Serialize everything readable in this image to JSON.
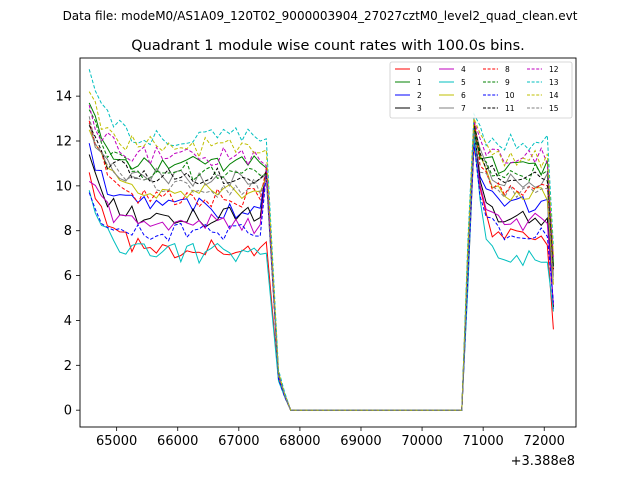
{
  "figure": {
    "suptitle": "Data file: modeM0/AS1A09_120T02_9000003904_27027cztM0_level2_quad_clean.evt"
  },
  "chart_data": {
    "type": "line",
    "title": "Quadrant 1 module wise count rates with 100.0s bins.",
    "xlabel": "",
    "ylabel": "",
    "x_offset_label": "+3.388e8",
    "xlim": [
      64400,
      72520
    ],
    "ylim": [
      -0.75,
      15.7
    ],
    "xticks": [
      65000,
      66000,
      67000,
      68000,
      69000,
      70000,
      71000,
      72000
    ],
    "xtick_labels": [
      "65000",
      "66000",
      "67000",
      "68000",
      "69000",
      "70000",
      "71000",
      "72000"
    ],
    "yticks": [
      0,
      2,
      4,
      6,
      8,
      10,
      12,
      14
    ],
    "ytick_labels": [
      "0",
      "2",
      "4",
      "6",
      "8",
      "10",
      "12",
      "14"
    ],
    "legend_position": "upper right",
    "legend_columns": 4,
    "segments": [
      {
        "name": "first interval",
        "x_start": 64550,
        "x_step": 100,
        "count": 30
      },
      {
        "name": "gap",
        "x": [
          67650,
          67750,
          67850,
          70650,
          70750
        ]
      },
      {
        "name": "second interval",
        "x_start": 70850,
        "x_step": 100,
        "count": 14
      }
    ],
    "series": [
      {
        "name": "0",
        "color": "#ff0000",
        "dash": "solid",
        "level1": 7.2,
        "start1": 10.6,
        "end1": 7.5,
        "level2": 7.7,
        "peak2": 11.8,
        "end2": 3.6,
        "tail1": 1.4,
        "tail2": 0.6,
        "rise": 5.7
      },
      {
        "name": "1",
        "color": "#008000",
        "dash": "solid",
        "level1": 11.0,
        "start1": 13.7,
        "end1": 10.8,
        "level2": 10.8,
        "peak2": 12.5,
        "end2": 6.5,
        "tail1": 1.6,
        "tail2": 0.7,
        "rise": 7.1
      },
      {
        "name": "2",
        "color": "#0000ff",
        "dash": "solid",
        "level1": 9.0,
        "start1": 11.9,
        "end1": 10.7,
        "level2": 9.2,
        "peak2": 12.4,
        "end2": 4.5,
        "tail1": 1.6,
        "tail2": 0.7,
        "rise": 6.4
      },
      {
        "name": "3",
        "color": "#000000",
        "dash": "solid",
        "level1": 8.6,
        "start1": 11.4,
        "end1": 10.7,
        "level2": 8.5,
        "peak2": 12.6,
        "end2": 4.6,
        "tail1": 1.5,
        "tail2": 0.7,
        "rise": 6.2
      },
      {
        "name": "4",
        "color": "#bf00bf",
        "dash": "solid",
        "level1": 8.3,
        "start1": 10.2,
        "end1": 10.6,
        "level2": 8.4,
        "peak2": 12.0,
        "end2": 4.7,
        "tail1": 1.5,
        "tail2": 0.7,
        "rise": 6.0
      },
      {
        "name": "5",
        "color": "#00bfbf",
        "dash": "solid",
        "level1": 7.0,
        "start1": 9.8,
        "end1": 7.0,
        "level2": 6.8,
        "peak2": 12.2,
        "end2": 4.4,
        "tail1": 1.3,
        "tail2": 0.6,
        "rise": 5.5
      },
      {
        "name": "6",
        "color": "#bfbf00",
        "dash": "solid",
        "level1": 9.8,
        "start1": 12.5,
        "end1": 10.4,
        "level2": 9.7,
        "peak2": 12.9,
        "end2": 5.6,
        "tail1": 1.6,
        "tail2": 0.7,
        "rise": 6.6
      },
      {
        "name": "7",
        "color": "#808080",
        "dash": "solid",
        "level1": 10.4,
        "start1": 12.8,
        "end1": 10.5,
        "level2": 10.2,
        "peak2": 12.7,
        "end2": 6.0,
        "tail1": 1.6,
        "tail2": 0.7,
        "rise": 6.8
      },
      {
        "name": "8",
        "color": "#ff0000",
        "dash": "dashed",
        "level1": 9.5,
        "start1": 12.9,
        "end1": 10.8,
        "level2": 9.8,
        "peak2": 13.0,
        "end2": 6.2,
        "tail1": 1.6,
        "tail2": 0.7,
        "rise": 6.7
      },
      {
        "name": "9",
        "color": "#008000",
        "dash": "dashed",
        "level1": 10.6,
        "start1": 13.4,
        "end1": 10.5,
        "level2": 10.6,
        "peak2": 12.6,
        "end2": 6.4,
        "tail1": 1.6,
        "tail2": 0.7,
        "rise": 7.0
      },
      {
        "name": "10",
        "color": "#0000ff",
        "dash": "dashed",
        "level1": 7.9,
        "start1": 9.7,
        "end1": 10.5,
        "level2": 7.8,
        "peak2": 11.9,
        "end2": 4.8,
        "tail1": 1.4,
        "tail2": 0.6,
        "rise": 5.9
      },
      {
        "name": "11",
        "color": "#000000",
        "dash": "dashed",
        "level1": 10.5,
        "start1": 12.7,
        "end1": 10.6,
        "level2": 10.4,
        "peak2": 12.8,
        "end2": 6.3,
        "tail1": 1.6,
        "tail2": 0.7,
        "rise": 6.9
      },
      {
        "name": "12",
        "color": "#bf00bf",
        "dash": "dashed",
        "level1": 11.3,
        "start1": 13.6,
        "end1": 10.9,
        "level2": 11.3,
        "peak2": 12.9,
        "end2": 6.8,
        "tail1": 1.7,
        "tail2": 0.7,
        "rise": 7.2
      },
      {
        "name": "13",
        "color": "#00bfbf",
        "dash": "dashed",
        "level1": 12.2,
        "start1": 15.2,
        "end1": 12.1,
        "level2": 11.9,
        "peak2": 13.2,
        "end2": 7.3,
        "tail1": 1.8,
        "tail2": 0.8,
        "rise": 7.6
      },
      {
        "name": "14",
        "color": "#bfbf00",
        "dash": "dashed",
        "level1": 11.7,
        "start1": 14.2,
        "end1": 11.6,
        "level2": 11.2,
        "peak2": 13.0,
        "end2": 6.9,
        "tail1": 1.7,
        "tail2": 0.7,
        "rise": 7.3
      },
      {
        "name": "15",
        "color": "#808080",
        "dash": "dashed",
        "level1": 9.9,
        "start1": 13.1,
        "end1": 10.3,
        "level2": 9.8,
        "peak2": 12.4,
        "end2": 5.8,
        "tail1": 1.5,
        "tail2": 0.7,
        "rise": 6.5
      }
    ]
  }
}
